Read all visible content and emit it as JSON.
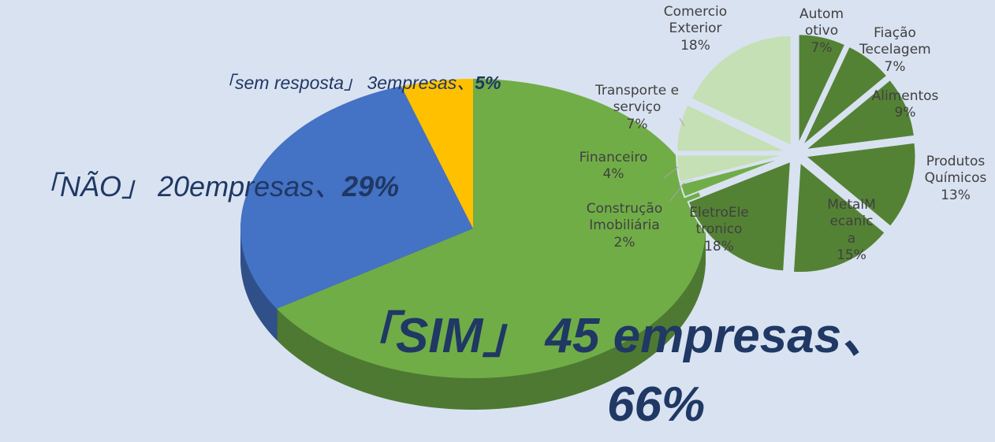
{
  "chart_data": [
    {
      "type": "pie",
      "categories": [
        "「SIM」 45 empresas、",
        "「NÃO」 20empresas、",
        "「sem resposta」 3empresas、"
      ],
      "values": [
        66,
        29,
        5
      ],
      "value_labels": [
        "66%",
        "29%",
        "5%"
      ],
      "colors": [
        "#70ad47",
        "#4472c4",
        "#ffc000"
      ]
    },
    {
      "type": "pie",
      "categories": [
        "Automotivo",
        "Fiação Tecelagem",
        "Alimentos",
        "Produtos Químicos",
        "MetalMecanica",
        "EletroEletronico",
        "Construção Imobiliária",
        "Financeiro",
        "Transporte e serviço",
        "Comercio Exterior"
      ],
      "values": [
        7,
        7,
        9,
        13,
        15,
        18,
        2,
        4,
        7,
        18
      ],
      "value_labels": [
        "7%",
        "7%",
        "9%",
        "13%",
        "15%",
        "18%",
        "2%",
        "4%",
        "7%",
        "18%"
      ],
      "colors": [
        "#548235",
        "#548235",
        "#548235",
        "#548235",
        "#548235",
        "#548235",
        "#70ad47",
        "#c5e0b4",
        "#c5e0b4",
        "#c5e0b4"
      ]
    }
  ]
}
